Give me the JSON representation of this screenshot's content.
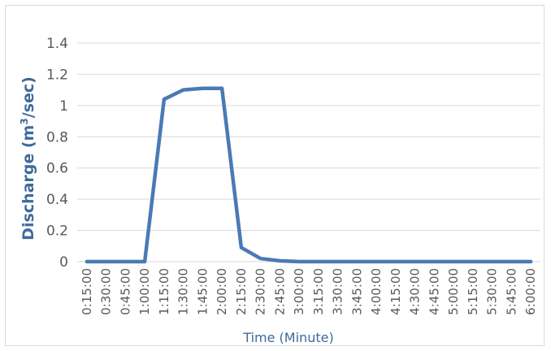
{
  "chart_data": {
    "type": "line",
    "title": "",
    "xlabel": "Time (Minute)",
    "ylabel_main": "Discharge (m",
    "ylabel_sup": "3",
    "ylabel_tail": "/sec)",
    "ylim": [
      0,
      1.4
    ],
    "yticks": [
      "0",
      "0.2",
      "0.4",
      "0.6",
      "0.8",
      "1",
      "1.2",
      "1.4"
    ],
    "grid": true,
    "legend": "none",
    "line_color": "#4a7ab5",
    "categories": [
      "0:15:00",
      "0:30:00",
      "0:45:00",
      "1:00:00",
      "1:15:00",
      "1:30:00",
      "1:45:00",
      "2:00:00",
      "2:15:00",
      "2:30:00",
      "2:45:00",
      "3:00:00",
      "3:15:00",
      "3:30:00",
      "3:45:00",
      "4:00:00",
      "4:15:00",
      "4:30:00",
      "4:45:00",
      "5:00:00",
      "5:15:00",
      "5:30:00",
      "5:45:00",
      "6:00:00"
    ],
    "series": [
      {
        "values": [
          0,
          0,
          0,
          0,
          1.04,
          1.1,
          1.11,
          1.11,
          0.09,
          0.02,
          0.005,
          0,
          0,
          0,
          0,
          0,
          0,
          0,
          0,
          0,
          0,
          0,
          0,
          0
        ]
      }
    ]
  }
}
